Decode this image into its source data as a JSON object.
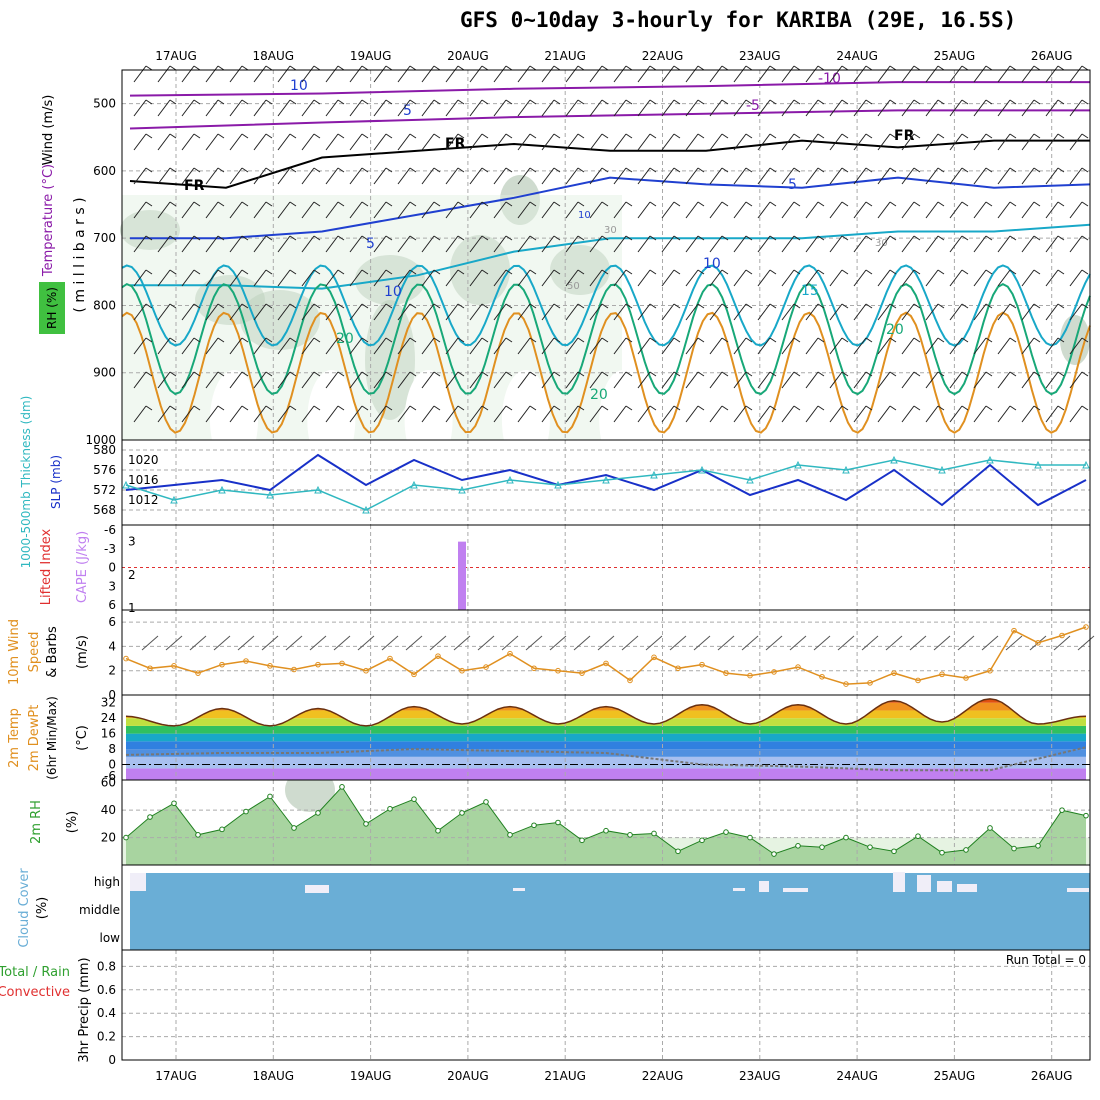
{
  "title": "GFS 0~10day 3-hourly for KARIBA (29E, 16.5S)",
  "colors": {
    "temperature_purple": "#8a1aa8",
    "temperature_blue": "#2040d0",
    "temperature_cyan": "#18a8c8",
    "temperature_green": "#18a878",
    "temperature_orange": "#e09020",
    "slp": "#1830c8",
    "thickness": "#30b8c0",
    "lifted_index": "#e03030",
    "cape": "#c080f0",
    "wind10m": "#e09020",
    "rh": "#30a030",
    "cloud": "#6aaed6"
  },
  "chart_data": [
    {
      "panel": "upper-air",
      "type": "heatmap",
      "ylabels": [
        "Wind (m/s)",
        "Temperature (°C)",
        "RH (%)"
      ],
      "yunit_label": "( m i l l i b a r s )",
      "y_ticks": [
        500,
        600,
        700,
        800,
        900,
        1000
      ],
      "ylim": [
        1000,
        450
      ],
      "x_categories": [
        "17AUG",
        "18AUG",
        "19AUG",
        "20AUG",
        "21AUG",
        "22AUG",
        "23AUG",
        "24AUG",
        "25AUG",
        "26AUG"
      ],
      "contour_labels": [
        "10",
        "5",
        "FR",
        "FR",
        "FR",
        "10",
        "5",
        "-10",
        "-5",
        "5",
        "10",
        "15",
        "20",
        "20",
        "20",
        "30",
        "50",
        "10",
        "30"
      ],
      "isotherms": [
        {
          "name": "-10",
          "x": [
            0,
            2,
            4,
            6,
            8,
            10
          ],
          "y": [
            488,
            485,
            478,
            474,
            468,
            468
          ]
        },
        {
          "name": "-5",
          "x": [
            0,
            2,
            4,
            6,
            8,
            10
          ],
          "y": [
            537,
            528,
            520,
            515,
            510,
            510
          ]
        },
        {
          "name": "FR",
          "x": [
            0,
            1,
            2,
            3,
            4,
            5,
            6,
            7,
            8,
            9,
            10
          ],
          "y": [
            615,
            625,
            580,
            570,
            560,
            570,
            570,
            555,
            565,
            555,
            555
          ]
        },
        {
          "name": "5",
          "x": [
            0,
            1,
            2,
            3,
            4,
            5,
            6,
            7,
            8,
            9,
            10
          ],
          "y": [
            700,
            700,
            690,
            665,
            640,
            610,
            620,
            625,
            610,
            625,
            620
          ]
        },
        {
          "name": "10",
          "x": [
            0,
            1,
            2,
            3,
            4,
            5,
            6,
            7,
            8,
            9,
            10
          ],
          "y": [
            770,
            770,
            775,
            755,
            720,
            700,
            700,
            700,
            690,
            690,
            680
          ]
        }
      ]
    },
    {
      "panel": "slp-thickness",
      "type": "line",
      "ylabels": [
        "1000-500mb Thickness (dm)",
        "SLP (mb)"
      ],
      "left_ticks": [
        568,
        572,
        576,
        580
      ],
      "right_ticks": [
        1012,
        1016,
        1020
      ],
      "series": [
        {
          "name": "SLP",
          "x": [
            0,
            0.5,
            1,
            1.5,
            2,
            2.5,
            3,
            3.5,
            4,
            4.5,
            5,
            5.5,
            6,
            6.5,
            7,
            7.5,
            8,
            8.5,
            9,
            9.5,
            10
          ],
          "y": [
            1014,
            1015,
            1016,
            1014,
            1021,
            1015,
            1020,
            1016,
            1018,
            1015,
            1017,
            1014,
            1018,
            1013,
            1016,
            1012,
            1018,
            1011,
            1019,
            1011,
            1016
          ]
        },
        {
          "name": "Thickness",
          "x": [
            0,
            0.5,
            1,
            1.5,
            2,
            2.5,
            3,
            3.5,
            4,
            4.5,
            5,
            5.5,
            6,
            6.5,
            7,
            7.5,
            8,
            8.5,
            9,
            9.5,
            10
          ],
          "y": [
            573,
            570,
            572,
            571,
            572,
            568,
            573,
            572,
            574,
            573,
            574,
            575,
            576,
            574,
            577,
            576,
            578,
            576,
            578,
            577,
            577
          ]
        }
      ]
    },
    {
      "panel": "stability",
      "type": "bar",
      "ylabels": [
        "Lifted Index",
        "CAPE (J/kg)"
      ],
      "left_ticks": [
        -6,
        -3,
        0,
        3,
        6
      ],
      "left_tick_labels": [
        "-6",
        "-3",
        "0",
        "3",
        "6"
      ],
      "right_ticks": [
        1,
        2,
        3
      ],
      "cape_bars": [
        {
          "x": 3.5,
          "value": 3
        }
      ]
    },
    {
      "panel": "wind10m",
      "type": "line",
      "ylabels": [
        "10m Wind",
        "Speed",
        "& Barbs"
      ],
      "yunit": "(m/s)",
      "y_ticks": [
        0,
        2,
        4,
        6
      ],
      "series": [
        {
          "name": "10m wind speed",
          "x": [
            0,
            0.25,
            0.5,
            0.75,
            1,
            1.25,
            1.5,
            1.75,
            2,
            2.25,
            2.5,
            2.75,
            3,
            3.25,
            3.5,
            3.75,
            4,
            4.25,
            4.5,
            4.75,
            5,
            5.25,
            5.5,
            5.75,
            6,
            6.25,
            6.5,
            6.75,
            7,
            7.25,
            7.5,
            7.75,
            8,
            8.25,
            8.5,
            8.75,
            9,
            9.25,
            9.5,
            9.75,
            10
          ],
          "y": [
            3.0,
            2.2,
            2.4,
            1.8,
            2.5,
            2.8,
            2.4,
            2.1,
            2.5,
            2.6,
            2.0,
            3.0,
            1.7,
            3.2,
            2.0,
            2.3,
            3.4,
            2.2,
            2.0,
            1.8,
            2.6,
            1.2,
            3.1,
            2.2,
            2.5,
            1.8,
            1.6,
            1.9,
            2.3,
            1.5,
            0.9,
            1.0,
            1.8,
            1.2,
            1.7,
            1.4,
            2.0,
            5.3,
            4.3,
            4.9,
            5.6
          ]
        }
      ]
    },
    {
      "panel": "temperature2m",
      "type": "area",
      "ylabels": [
        "2m Temp",
        "2m DewPt",
        "(6hr Min/Max)"
      ],
      "yunit": "(°C)",
      "y_ticks": [
        -6,
        0,
        8,
        16,
        24,
        32
      ],
      "series": [
        {
          "name": "2m Temp",
          "x": [
            0,
            0.5,
            1,
            1.5,
            2,
            2.5,
            3,
            3.5,
            4,
            4.5,
            5,
            5.5,
            6,
            6.5,
            7,
            7.5,
            8,
            8.5,
            9,
            9.5,
            10
          ],
          "y": [
            25,
            20,
            29,
            20,
            29,
            20,
            30,
            21,
            30,
            21,
            30,
            21,
            31,
            21,
            31,
            21,
            33,
            22,
            34,
            21,
            25
          ]
        },
        {
          "name": "2m DewPt",
          "x": [
            0,
            1,
            2,
            3,
            4,
            5,
            6,
            7,
            8,
            9,
            10
          ],
          "y": [
            5,
            6,
            6,
            8,
            7,
            6,
            0,
            -1,
            -3,
            -3,
            9
          ]
        }
      ]
    },
    {
      "panel": "rh2m",
      "type": "area",
      "ylabels": [
        "2m RH"
      ],
      "yunit": "(%)",
      "y_ticks": [
        20,
        40,
        60
      ],
      "series": [
        {
          "name": "2m RH",
          "x": [
            0,
            0.25,
            0.5,
            0.75,
            1,
            1.25,
            1.5,
            1.75,
            2,
            2.25,
            2.5,
            2.75,
            3,
            3.25,
            3.5,
            3.75,
            4,
            4.25,
            4.5,
            4.75,
            5,
            5.25,
            5.5,
            5.75,
            6,
            6.25,
            6.5,
            6.75,
            7,
            7.25,
            7.5,
            7.75,
            8,
            8.25,
            8.5,
            8.75,
            9,
            9.25,
            9.5,
            9.75,
            10
          ],
          "y": [
            20,
            35,
            45,
            22,
            26,
            39,
            50,
            27,
            38,
            57,
            30,
            41,
            48,
            25,
            38,
            46,
            22,
            29,
            31,
            18,
            25,
            22,
            23,
            10,
            18,
            24,
            20,
            8,
            14,
            13,
            20,
            13,
            10,
            21,
            9,
            11,
            27,
            12,
            14,
            40,
            36
          ]
        }
      ]
    },
    {
      "panel": "cloud",
      "type": "bar",
      "ylabels": [
        "Cloud Cover",
        "(%)"
      ],
      "y_categories": [
        "high",
        "middle",
        "low"
      ]
    },
    {
      "panel": "precip",
      "type": "bar",
      "ylabels": [
        "Total / Rain",
        "Convective",
        "3hr Precip (mm)"
      ],
      "y_ticks": [
        0,
        0.2,
        0.4,
        0.6,
        0.8
      ],
      "annotation": "Run Total = 0"
    }
  ]
}
